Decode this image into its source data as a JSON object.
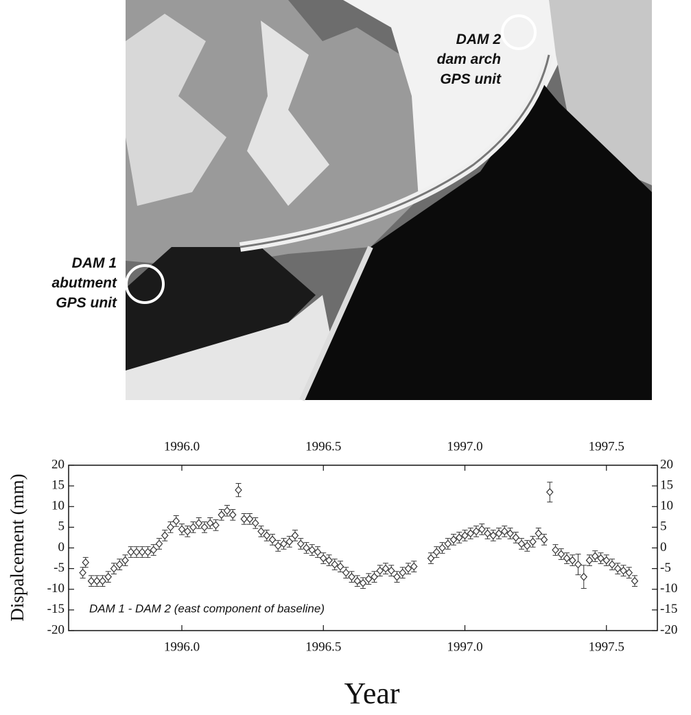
{
  "annotations": {
    "dam2": [
      "DAM 2",
      "dam arch",
      "GPS unit"
    ],
    "dam1": [
      "DAM 1",
      "abutment",
      "GPS unit"
    ]
  },
  "chart_data": {
    "type": "scatter",
    "xlabel": "Year",
    "ylabel": "Dispalcement (mm)",
    "annotation": "DAM 1 - DAM 2  (east component of baseline)",
    "color": "#333333",
    "xlim": [
      1995.6,
      1997.68
    ],
    "ylim": [
      -20,
      20
    ],
    "xticks": [
      {
        "value": 1996,
        "label": "1996.0"
      },
      1996.5,
      {
        "value": 1997,
        "label": "1997.0"
      },
      1997.5
    ],
    "yticks": [
      -20,
      -15,
      -10,
      -5,
      0,
      5,
      10,
      15,
      20
    ],
    "x": [
      1995.65,
      1995.66,
      1995.68,
      1995.7,
      1995.72,
      1995.74,
      1995.76,
      1995.78,
      1995.8,
      1995.82,
      1995.84,
      1995.86,
      1995.88,
      1995.9,
      1995.92,
      1995.94,
      1995.96,
      1995.98,
      1996.0,
      1996.02,
      1996.04,
      1996.06,
      1996.08,
      1996.1,
      1996.12,
      1996.14,
      1996.16,
      1996.18,
      1996.2,
      1996.22,
      1996.24,
      1996.26,
      1996.28,
      1996.3,
      1996.32,
      1996.34,
      1996.36,
      1996.38,
      1996.4,
      1996.42,
      1996.44,
      1996.46,
      1996.48,
      1996.5,
      1996.52,
      1996.54,
      1996.56,
      1996.58,
      1996.6,
      1996.62,
      1996.64,
      1996.66,
      1996.68,
      1996.7,
      1996.72,
      1996.74,
      1996.76,
      1996.78,
      1996.8,
      1996.82,
      1996.88,
      1996.9,
      1996.92,
      1996.94,
      1996.96,
      1996.98,
      1997.0,
      1997.02,
      1997.04,
      1997.06,
      1997.08,
      1997.1,
      1997.12,
      1997.14,
      1997.16,
      1997.18,
      1997.2,
      1997.22,
      1997.24,
      1997.26,
      1997.28,
      1997.3,
      1997.32,
      1997.34,
      1997.36,
      1997.38,
      1997.4,
      1997.42,
      1997.44,
      1997.46,
      1997.48,
      1997.5,
      1997.52,
      1997.54,
      1997.56,
      1997.58,
      1997.6
    ],
    "values": [
      -6,
      -3.5,
      -8,
      -8,
      -8,
      -7,
      -5,
      -4,
      -3,
      -1,
      -1,
      -1,
      -1,
      -0.5,
      1,
      3,
      5,
      6.5,
      4.5,
      4,
      5,
      6,
      5,
      6,
      5.5,
      8,
      9,
      8,
      14,
      7,
      7,
      6,
      4,
      3,
      2,
      0.5,
      1,
      1.5,
      3,
      1,
      0,
      -0.5,
      -1,
      -2.5,
      -3,
      -4,
      -4.5,
      -6,
      -7,
      -8,
      -8.5,
      -7.5,
      -7,
      -5.5,
      -5,
      -5.5,
      -7,
      -6,
      -5,
      -4.5,
      -2.5,
      -1,
      0,
      1,
      2,
      2.5,
      3,
      3.5,
      4,
      4.5,
      3.5,
      3,
      3.5,
      4,
      3.5,
      2.5,
      1,
      0.5,
      1.5,
      3.5,
      2,
      13.5,
      -0.5,
      -1.5,
      -2.5,
      -3,
      -4,
      -7,
      -3,
      -2,
      -2.5,
      -3,
      -4,
      -5,
      -5.5,
      -6,
      -8
    ],
    "errors": [
      1.3,
      1.2,
      1.3,
      1.3,
      1.3,
      1.3,
      1.3,
      1.3,
      1.3,
      1.3,
      1.3,
      1.3,
      1.3,
      1.3,
      1.3,
      1.3,
      1.3,
      1.3,
      1.3,
      1.3,
      1.3,
      1.3,
      1.3,
      1.3,
      1.3,
      1.3,
      1.3,
      1.3,
      1.6,
      1.3,
      1.3,
      1.3,
      1.3,
      1.3,
      1.3,
      1.3,
      1.3,
      1.3,
      1.3,
      1.3,
      1.3,
      1.3,
      1.3,
      1.3,
      1.3,
      1.3,
      1.3,
      1.3,
      1.3,
      1.3,
      1.3,
      1.3,
      1.3,
      1.3,
      1.3,
      1.3,
      1.3,
      1.3,
      1.3,
      1.3,
      1.3,
      1.3,
      1.3,
      1.3,
      1.3,
      1.3,
      1.3,
      1.3,
      1.3,
      1.3,
      1.3,
      1.3,
      1.3,
      1.3,
      1.3,
      1.3,
      1.3,
      1.3,
      1.3,
      1.3,
      1.3,
      2.4,
      1.3,
      1.3,
      1.3,
      1.3,
      2.5,
      2.8,
      1.3,
      1.3,
      1.3,
      1.3,
      1.3,
      1.3,
      1.3,
      1.3,
      1.3
    ]
  }
}
